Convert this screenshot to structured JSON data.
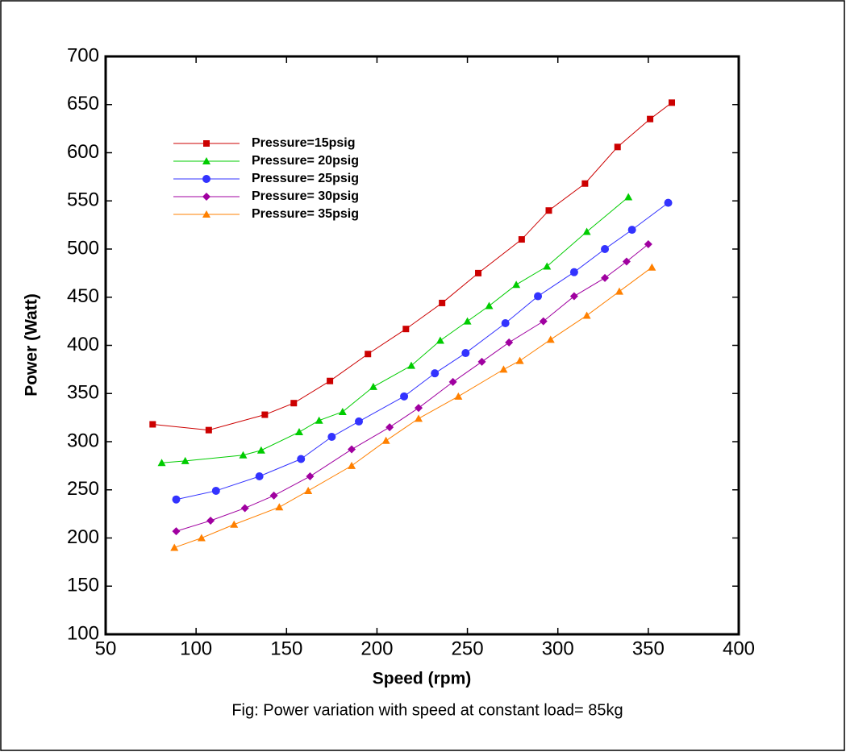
{
  "chart_data": {
    "type": "line",
    "caption": "Fig: Power variation with speed at constant load= 85kg",
    "x_label": "Speed (rpm)",
    "y_label": "Power (Watt)",
    "xlim": [
      50,
      400
    ],
    "xticks": [
      50,
      100,
      150,
      200,
      250,
      300,
      350,
      400
    ],
    "ylim": [
      100,
      700
    ],
    "yticks": [
      100,
      150,
      200,
      250,
      300,
      350,
      400,
      450,
      500,
      550,
      600,
      650,
      700
    ],
    "legend": "upper-left",
    "series": [
      {
        "name": "Pressure=15psig",
        "color": "#cc0000",
        "marker": "square",
        "x": [
          76,
          107,
          138,
          154,
          174,
          195,
          216,
          236,
          256,
          280,
          295,
          315,
          333,
          351,
          363
        ],
        "values": [
          318,
          312,
          328,
          340,
          363,
          391,
          417,
          444,
          475,
          510,
          540,
          568,
          606,
          635,
          652
        ]
      },
      {
        "name": "Pressure= 20psig",
        "color": "#00cc00",
        "marker": "triangle",
        "x": [
          81,
          94,
          126,
          136,
          157,
          168,
          181,
          198,
          219,
          235,
          250,
          262,
          277,
          294,
          316,
          339
        ],
        "values": [
          278,
          280,
          286,
          291,
          310,
          322,
          331,
          357,
          379,
          405,
          425,
          441,
          463,
          482,
          518,
          554
        ]
      },
      {
        "name": "Pressure= 25psig",
        "color": "#3333ff",
        "marker": "circle",
        "x": [
          89,
          111,
          135,
          158,
          175,
          190,
          215,
          232,
          249,
          271,
          289,
          309,
          326,
          341,
          361
        ],
        "values": [
          240,
          249,
          264,
          282,
          305,
          321,
          347,
          371,
          392,
          423,
          451,
          476,
          500,
          520,
          548
        ]
      },
      {
        "name": "Pressure= 30psig",
        "color": "#a000a0",
        "marker": "diamond",
        "x": [
          89,
          108,
          127,
          143,
          163,
          186,
          207,
          223,
          242,
          258,
          273,
          292,
          309,
          326,
          338,
          350
        ],
        "values": [
          207,
          218,
          231,
          244,
          264,
          292,
          315,
          335,
          362,
          383,
          403,
          425,
          451,
          470,
          487,
          505
        ]
      },
      {
        "name": "Pressure= 35psig",
        "color": "#ff8000",
        "marker": "triangle",
        "x": [
          88,
          103,
          121,
          146,
          162,
          186,
          205,
          223,
          245,
          270,
          279,
          296,
          316,
          334,
          352
        ],
        "values": [
          190,
          200,
          214,
          232,
          249,
          275,
          301,
          324,
          347,
          375,
          384,
          406,
          431,
          456,
          481
        ]
      }
    ]
  }
}
